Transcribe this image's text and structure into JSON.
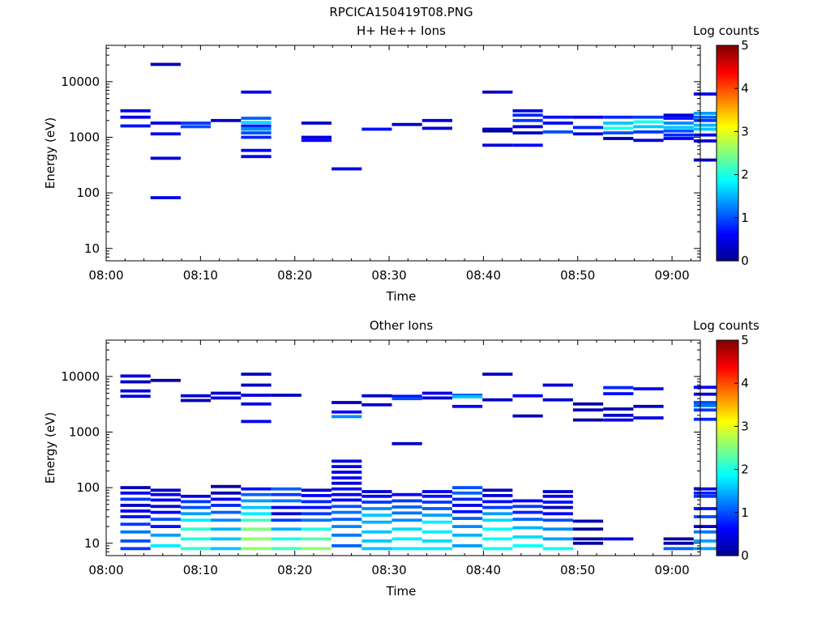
{
  "figure": {
    "title": "RPCICA150419T08.PNG"
  },
  "colormap": {
    "name": "jet",
    "stops": [
      "#00008f",
      "#0000ff",
      "#0080ff",
      "#00ffff",
      "#80ff80",
      "#ffff00",
      "#ff8000",
      "#ff0000",
      "#800000"
    ]
  },
  "chart_data": [
    {
      "type": "heatmap",
      "title": "H+ He++ Ions",
      "xlabel": "Time",
      "ylabel": "Energy (eV)",
      "colorbar_label": "Log counts",
      "colorbar_ticks": [
        "0",
        "1",
        "2",
        "3",
        "4",
        "5"
      ],
      "color_range": [
        0,
        5
      ],
      "x_ticks": [
        "08:00",
        "08:10",
        "08:20",
        "08:30",
        "08:40",
        "08:50",
        "09:00"
      ],
      "xlim_minutes": [
        0,
        63
      ],
      "y_scale": "log",
      "ylim": [
        6,
        45000
      ],
      "y_ticks": [
        "10",
        "100",
        "1000",
        "10000"
      ],
      "time_bin_minutes": 3.2,
      "bins": [
        [
          1,
          3000,
          0.5
        ],
        [
          1,
          2300,
          0.5
        ],
        [
          1,
          1600,
          0.7
        ],
        [
          2,
          20500,
          0.2
        ],
        [
          2,
          1800,
          0.4
        ],
        [
          2,
          1150,
          0.5
        ],
        [
          2,
          420,
          0.4
        ],
        [
          2,
          82,
          0.5
        ],
        [
          3,
          1800,
          0.9
        ],
        [
          3,
          1550,
          1.0
        ],
        [
          4,
          2000,
          0.3
        ],
        [
          5,
          6500,
          0.5
        ],
        [
          5,
          2200,
          1.1
        ],
        [
          5,
          1850,
          1.7
        ],
        [
          5,
          1600,
          0.8
        ],
        [
          5,
          1400,
          1.3
        ],
        [
          5,
          1200,
          1.0
        ],
        [
          5,
          1000,
          0.8
        ],
        [
          5,
          580,
          0.6
        ],
        [
          5,
          450,
          0.5
        ],
        [
          7,
          1800,
          0.3
        ],
        [
          7,
          1000,
          0.4
        ],
        [
          7,
          880,
          0.6
        ],
        [
          8,
          270,
          0.5
        ],
        [
          9,
          1400,
          0.7
        ],
        [
          10,
          1700,
          0.3
        ],
        [
          11,
          2000,
          0.4
        ],
        [
          11,
          1450,
          0.4
        ],
        [
          13,
          6500,
          0.3
        ],
        [
          13,
          1400,
          0.3
        ],
        [
          13,
          1300,
          0.1
        ],
        [
          13,
          720,
          0.4
        ],
        [
          14,
          3000,
          0.5
        ],
        [
          14,
          2500,
          0.8
        ],
        [
          14,
          2000,
          0.9
        ],
        [
          14,
          1550,
          0.4
        ],
        [
          14,
          1200,
          0.3
        ],
        [
          14,
          720,
          0.6
        ],
        [
          15,
          2300,
          0.7
        ],
        [
          15,
          1800,
          0.6
        ],
        [
          15,
          1250,
          1.0
        ],
        [
          16,
          2300,
          0.5
        ],
        [
          16,
          1500,
          0.8
        ],
        [
          16,
          1150,
          0.4
        ],
        [
          17,
          2300,
          0.8
        ],
        [
          17,
          1800,
          1.6
        ],
        [
          17,
          1450,
          2.0
        ],
        [
          17,
          1200,
          1.0
        ],
        [
          17,
          950,
          0.2
        ],
        [
          18,
          2300,
          0.9
        ],
        [
          18,
          1900,
          2.0
        ],
        [
          18,
          1550,
          1.6
        ],
        [
          18,
          1250,
          0.9
        ],
        [
          18,
          880,
          0.4
        ],
        [
          19,
          2500,
          0.4
        ],
        [
          19,
          2200,
          0.7
        ],
        [
          19,
          1800,
          1.3
        ],
        [
          19,
          1500,
          1.6
        ],
        [
          19,
          1300,
          1.0
        ],
        [
          19,
          1100,
          0.8
        ],
        [
          19,
          950,
          0.6
        ],
        [
          20,
          6000,
          0.5
        ],
        [
          20,
          2700,
          1.4
        ],
        [
          20,
          2300,
          1.1
        ],
        [
          20,
          2000,
          0.9
        ],
        [
          20,
          1650,
          1.5
        ],
        [
          20,
          1400,
          1.6
        ],
        [
          20,
          1100,
          0.6
        ],
        [
          20,
          860,
          0.4
        ],
        [
          20,
          390,
          0.3
        ]
      ]
    },
    {
      "type": "heatmap",
      "title": "Other Ions",
      "xlabel": "Time",
      "ylabel": "Energy (eV)",
      "colorbar_label": "Log counts",
      "colorbar_ticks": [
        "0",
        "1",
        "2",
        "3",
        "4",
        "5"
      ],
      "color_range": [
        0,
        5
      ],
      "x_ticks": [
        "08:00",
        "08:10",
        "08:20",
        "08:30",
        "08:40",
        "08:50",
        "09:00"
      ],
      "xlim_minutes": [
        0,
        63
      ],
      "y_scale": "log",
      "ylim": [
        6,
        45000
      ],
      "y_ticks": [
        "10",
        "100",
        "1000",
        "10000"
      ],
      "time_bin_minutes": 3.2,
      "bins": [
        [
          1,
          10200,
          0.4
        ],
        [
          1,
          8000,
          0.3
        ],
        [
          1,
          5500,
          0.4
        ],
        [
          1,
          4400,
          0.4
        ],
        [
          1,
          100,
          0.2
        ],
        [
          1,
          80,
          0.6
        ],
        [
          1,
          62,
          0.9
        ],
        [
          1,
          48,
          0.3
        ],
        [
          1,
          38,
          0.5
        ],
        [
          1,
          30,
          0.7
        ],
        [
          1,
          22,
          0.9
        ],
        [
          1,
          16,
          1.2
        ],
        [
          1,
          11,
          1.0
        ],
        [
          1,
          8,
          0.9
        ],
        [
          2,
          8500,
          0.1
        ],
        [
          2,
          90,
          0.3
        ],
        [
          2,
          75,
          0.5
        ],
        [
          2,
          60,
          0.6
        ],
        [
          2,
          46,
          0.4
        ],
        [
          2,
          36,
          0.6
        ],
        [
          2,
          27,
          1.0
        ],
        [
          2,
          20,
          0.7
        ],
        [
          2,
          14,
          1.4
        ],
        [
          2,
          9,
          1.8
        ],
        [
          3,
          4500,
          0.4
        ],
        [
          3,
          3700,
          0.2
        ],
        [
          3,
          70,
          0.5
        ],
        [
          3,
          56,
          0.9
        ],
        [
          3,
          44,
          1.0
        ],
        [
          3,
          34,
          1.4
        ],
        [
          3,
          26,
          1.8
        ],
        [
          3,
          18,
          2.1
        ],
        [
          3,
          12,
          2.0
        ],
        [
          3,
          8,
          2.1
        ],
        [
          4,
          5000,
          0.3
        ],
        [
          4,
          4100,
          0.5
        ],
        [
          4,
          105,
          0.1
        ],
        [
          4,
          80,
          0.2
        ],
        [
          4,
          62,
          0.6
        ],
        [
          4,
          48,
          0.8
        ],
        [
          4,
          36,
          1.1
        ],
        [
          4,
          26,
          1.3
        ],
        [
          4,
          18,
          1.5
        ],
        [
          4,
          12,
          1.6
        ],
        [
          4,
          8,
          1.6
        ],
        [
          5,
          11000,
          0.3
        ],
        [
          5,
          7000,
          0.3
        ],
        [
          5,
          4600,
          0.4
        ],
        [
          5,
          3200,
          0.5
        ],
        [
          5,
          1550,
          0.5
        ],
        [
          5,
          95,
          0.7
        ],
        [
          5,
          75,
          1.1
        ],
        [
          5,
          58,
          1.4
        ],
        [
          5,
          44,
          1.6
        ],
        [
          5,
          34,
          1.8
        ],
        [
          5,
          26,
          2.2
        ],
        [
          5,
          18,
          2.5
        ],
        [
          5,
          12,
          2.6
        ],
        [
          5,
          8,
          2.6
        ],
        [
          6,
          4600,
          0.3
        ],
        [
          6,
          95,
          1.1
        ],
        [
          6,
          75,
          0.9
        ],
        [
          6,
          58,
          1.2
        ],
        [
          6,
          44,
          0.5
        ],
        [
          6,
          34,
          0.4
        ],
        [
          6,
          26,
          0.9
        ],
        [
          6,
          18,
          1.5
        ],
        [
          6,
          12,
          2.0
        ],
        [
          6,
          8,
          2.2
        ],
        [
          7,
          90,
          0.3
        ],
        [
          7,
          72,
          0.6
        ],
        [
          7,
          56,
          0.8
        ],
        [
          7,
          44,
          0.7
        ],
        [
          7,
          34,
          0.9
        ],
        [
          7,
          26,
          1.2
        ],
        [
          7,
          18,
          2.0
        ],
        [
          7,
          12,
          2.3
        ],
        [
          7,
          8,
          2.6
        ],
        [
          8,
          3400,
          0.3
        ],
        [
          8,
          2300,
          0.6
        ],
        [
          8,
          1900,
          1.3
        ],
        [
          8,
          300,
          0.4
        ],
        [
          8,
          240,
          0.6
        ],
        [
          8,
          190,
          0.5
        ],
        [
          8,
          150,
          0.6
        ],
        [
          8,
          120,
          0.4
        ],
        [
          8,
          95,
          0.7
        ],
        [
          8,
          75,
          0.5
        ],
        [
          8,
          60,
          0.6
        ],
        [
          8,
          46,
          1.0
        ],
        [
          8,
          36,
          1.2
        ],
        [
          8,
          27,
          1.1
        ],
        [
          8,
          20,
          1.3
        ],
        [
          8,
          14,
          1.2
        ],
        [
          8,
          9,
          1.1
        ],
        [
          9,
          4500,
          0.3
        ],
        [
          9,
          3100,
          0.4
        ],
        [
          9,
          85,
          0.4
        ],
        [
          9,
          70,
          0.6
        ],
        [
          9,
          55,
          0.9
        ],
        [
          9,
          42,
          1.3
        ],
        [
          9,
          32,
          1.6
        ],
        [
          9,
          24,
          1.5
        ],
        [
          9,
          16,
          1.6
        ],
        [
          9,
          11,
          1.6
        ],
        [
          9,
          8,
          1.6
        ],
        [
          10,
          4400,
          0.7
        ],
        [
          10,
          4000,
          1.0
        ],
        [
          10,
          620,
          0.3
        ],
        [
          10,
          75,
          0.6
        ],
        [
          10,
          58,
          0.9
        ],
        [
          10,
          45,
          1.1
        ],
        [
          10,
          35,
          1.2
        ],
        [
          10,
          26,
          1.3
        ],
        [
          10,
          18,
          1.7
        ],
        [
          10,
          12,
          1.8
        ],
        [
          10,
          8,
          1.8
        ],
        [
          11,
          5000,
          0.5
        ],
        [
          11,
          4100,
          0.4
        ],
        [
          11,
          85,
          0.5
        ],
        [
          11,
          70,
          0.7
        ],
        [
          11,
          55,
          0.9
        ],
        [
          11,
          42,
          1.1
        ],
        [
          11,
          32,
          1.4
        ],
        [
          11,
          24,
          1.8
        ],
        [
          11,
          16,
          1.8
        ],
        [
          11,
          11,
          1.7
        ],
        [
          11,
          8,
          1.8
        ],
        [
          12,
          4600,
          1.1
        ],
        [
          12,
          4300,
          1.6
        ],
        [
          12,
          2900,
          0.6
        ],
        [
          12,
          100,
          1.0
        ],
        [
          12,
          80,
          1.1
        ],
        [
          12,
          62,
          0.8
        ],
        [
          12,
          48,
          0.5
        ],
        [
          12,
          37,
          0.7
        ],
        [
          12,
          28,
          1.1
        ],
        [
          12,
          20,
          1.3
        ],
        [
          12,
          14,
          1.5
        ],
        [
          12,
          9,
          1.4
        ],
        [
          13,
          11000,
          0.3
        ],
        [
          13,
          3800,
          0.3
        ],
        [
          13,
          90,
          0.2
        ],
        [
          13,
          72,
          0.4
        ],
        [
          13,
          56,
          0.7
        ],
        [
          13,
          44,
          0.9
        ],
        [
          13,
          34,
          1.4
        ],
        [
          13,
          26,
          1.7
        ],
        [
          13,
          18,
          1.9
        ],
        [
          13,
          12,
          1.9
        ],
        [
          13,
          8,
          1.9
        ],
        [
          14,
          4500,
          0.6
        ],
        [
          14,
          1950,
          0.2
        ],
        [
          14,
          58,
          0.6
        ],
        [
          14,
          46,
          0.9
        ],
        [
          14,
          36,
          0.8
        ],
        [
          14,
          27,
          1.1
        ],
        [
          14,
          19,
          1.5
        ],
        [
          14,
          13,
          1.7
        ],
        [
          14,
          9,
          1.9
        ],
        [
          15,
          7000,
          0.4
        ],
        [
          15,
          3800,
          0.4
        ],
        [
          15,
          85,
          0.4
        ],
        [
          15,
          70,
          0.5
        ],
        [
          15,
          55,
          0.7
        ],
        [
          15,
          44,
          0.2
        ],
        [
          15,
          34,
          0.6
        ],
        [
          15,
          26,
          1.0
        ],
        [
          15,
          18,
          1.3
        ],
        [
          15,
          12,
          1.4
        ],
        [
          15,
          8,
          1.9
        ],
        [
          16,
          3200,
          0.1
        ],
        [
          16,
          2500,
          0.2
        ],
        [
          16,
          1650,
          0.1
        ],
        [
          16,
          25,
          0.2
        ],
        [
          16,
          18,
          0.1
        ],
        [
          16,
          12,
          0.1
        ],
        [
          16,
          10,
          0.1
        ],
        [
          17,
          6300,
          0.8
        ],
        [
          17,
          4900,
          0.7
        ],
        [
          17,
          2600,
          0.2
        ],
        [
          17,
          2000,
          0.3
        ],
        [
          17,
          1650,
          0.5
        ],
        [
          17,
          12,
          0.5
        ],
        [
          18,
          6000,
          0.6
        ],
        [
          18,
          2900,
          0.3
        ],
        [
          18,
          1800,
          0.5
        ],
        [
          19,
          12,
          0.1
        ],
        [
          19,
          10,
          0.1
        ],
        [
          19,
          8,
          1.1
        ],
        [
          20,
          6400,
          0.6
        ],
        [
          20,
          4800,
          0.4
        ],
        [
          20,
          3400,
          1.0
        ],
        [
          20,
          3000,
          1.2
        ],
        [
          20,
          2500,
          0.9
        ],
        [
          20,
          1700,
          0.8
        ],
        [
          20,
          95,
          0.6
        ],
        [
          20,
          80,
          0.8
        ],
        [
          20,
          70,
          0.9
        ],
        [
          20,
          42,
          0.7
        ],
        [
          20,
          30,
          1.0
        ],
        [
          20,
          20,
          0.4
        ],
        [
          20,
          16,
          1.2
        ],
        [
          20,
          11,
          1.4
        ],
        [
          20,
          8,
          1.4
        ]
      ]
    }
  ]
}
